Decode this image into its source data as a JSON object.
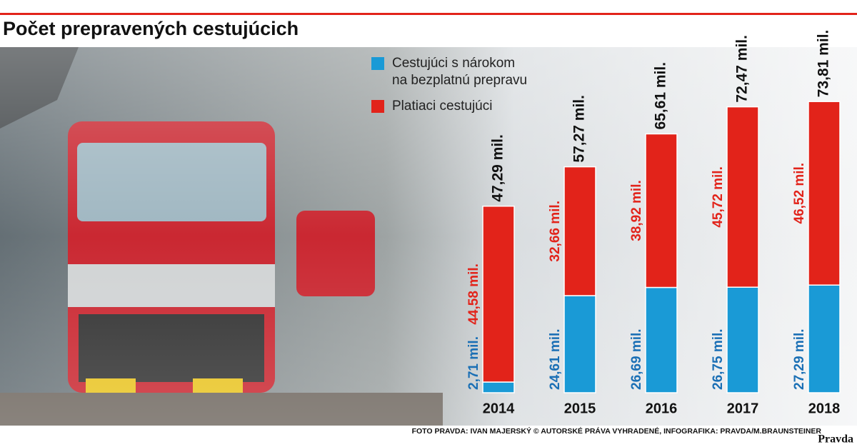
{
  "chart_data": {
    "type": "stacked_bar",
    "title": "Počet prepravených cestujúcich",
    "categories": [
      "2014",
      "2015",
      "2016",
      "2017",
      "2018"
    ],
    "series": [
      {
        "name": "Cestujúci s nárokom na bezplatnú prepravu",
        "color": "#1a9ad6",
        "values": [
          2.71,
          24.61,
          26.69,
          26.75,
          27.29
        ],
        "value_labels": [
          "2,71 mil.",
          "24,61 mil.",
          "26,69 mil.",
          "26,75 mil.",
          "27,29 mil."
        ]
      },
      {
        "name": "Platiaci cestujúci",
        "color": "#e2231a",
        "values": [
          44.58,
          32.66,
          38.92,
          45.72,
          46.52
        ],
        "value_labels": [
          "44,58 mil.",
          "32,66 mil.",
          "38,92 mil.",
          "45,72 mil.",
          "46,52 mil."
        ]
      }
    ],
    "totals": [
      47.29,
      57.27,
      65.61,
      72.47,
      73.81
    ],
    "total_labels": [
      "47,29 mil.",
      "57,27 mil.",
      "65,61 mil.",
      "72,47 mil.",
      "73,81 mil."
    ],
    "ylim": [
      0,
      80
    ],
    "credit": "FOTO PRAVDA: IVAN MAJERSKÝ © AUTORSKÉ PRÁVA VYHRADENÉ, INFOGRAFIKA: PRAVDA/M.BRAUNSTEINER",
    "logo": "Pravda"
  }
}
